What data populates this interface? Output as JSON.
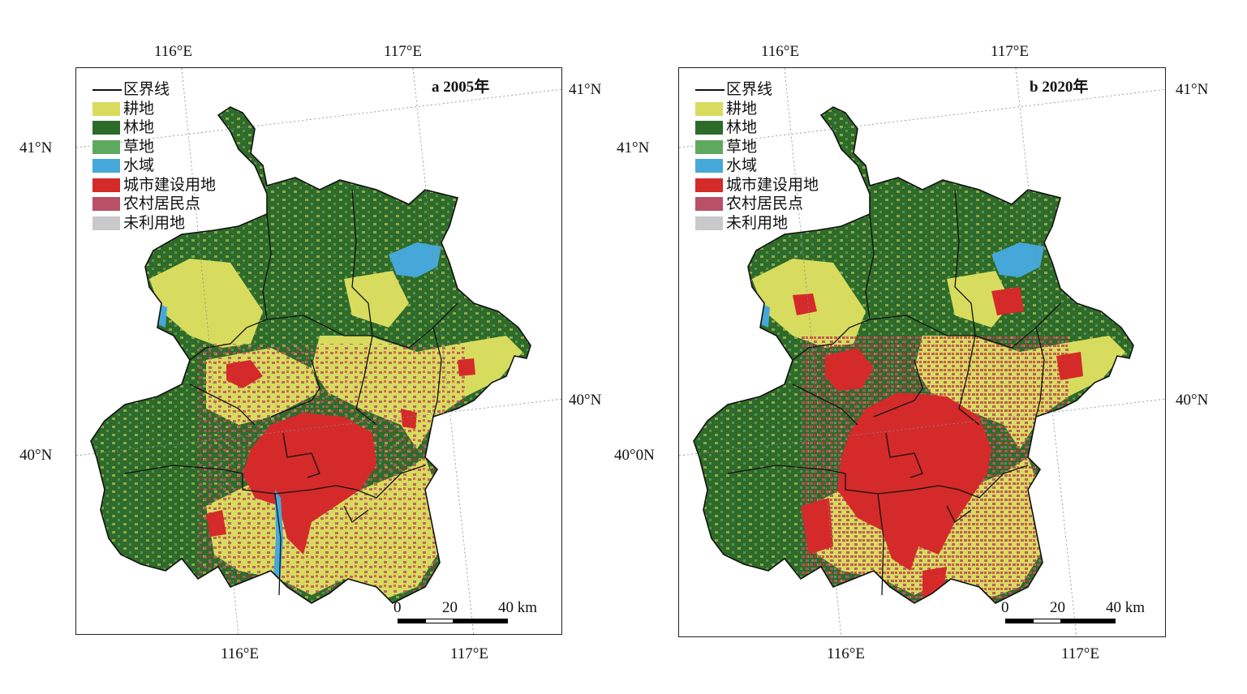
{
  "legend": {
    "items": [
      {
        "label": "区界线",
        "kind": "line",
        "color": "#111111"
      },
      {
        "label": "耕地",
        "kind": "swatch",
        "color": "#d8dc5e"
      },
      {
        "label": "林地",
        "kind": "swatch",
        "color": "#2e6b2a"
      },
      {
        "label": "草地",
        "kind": "swatch",
        "color": "#5fa85f"
      },
      {
        "label": "水域",
        "kind": "swatch",
        "color": "#46a8d8"
      },
      {
        "label": "城市建设用地",
        "kind": "swatch",
        "color": "#d42a2a"
      },
      {
        "label": "农村居民点",
        "kind": "swatch",
        "color": "#b85068"
      },
      {
        "label": "未利用地",
        "kind": "swatch",
        "color": "#c9c9c9"
      }
    ]
  },
  "panels": [
    {
      "title": "a 2005年",
      "top_ticks": [
        "116°E",
        "117°E"
      ],
      "bottom_ticks": [
        "116°E",
        "117°E"
      ],
      "left_ticks": [
        "41°N",
        "40°N"
      ],
      "right_ticks": [
        "41°N",
        "40°N"
      ],
      "scale": {
        "labels": [
          "0",
          "20",
          "40 km"
        ]
      }
    },
    {
      "title": "b 2020年",
      "top_ticks": [
        "116°E",
        "117°E"
      ],
      "bottom_ticks": [
        "116°E",
        "117°E"
      ],
      "left_ticks": [
        "41°N",
        "40°0N"
      ],
      "right_ticks": [
        "41°N",
        "40°N"
      ],
      "scale": {
        "labels": [
          "0",
          "20",
          "40 km"
        ]
      }
    }
  ]
}
